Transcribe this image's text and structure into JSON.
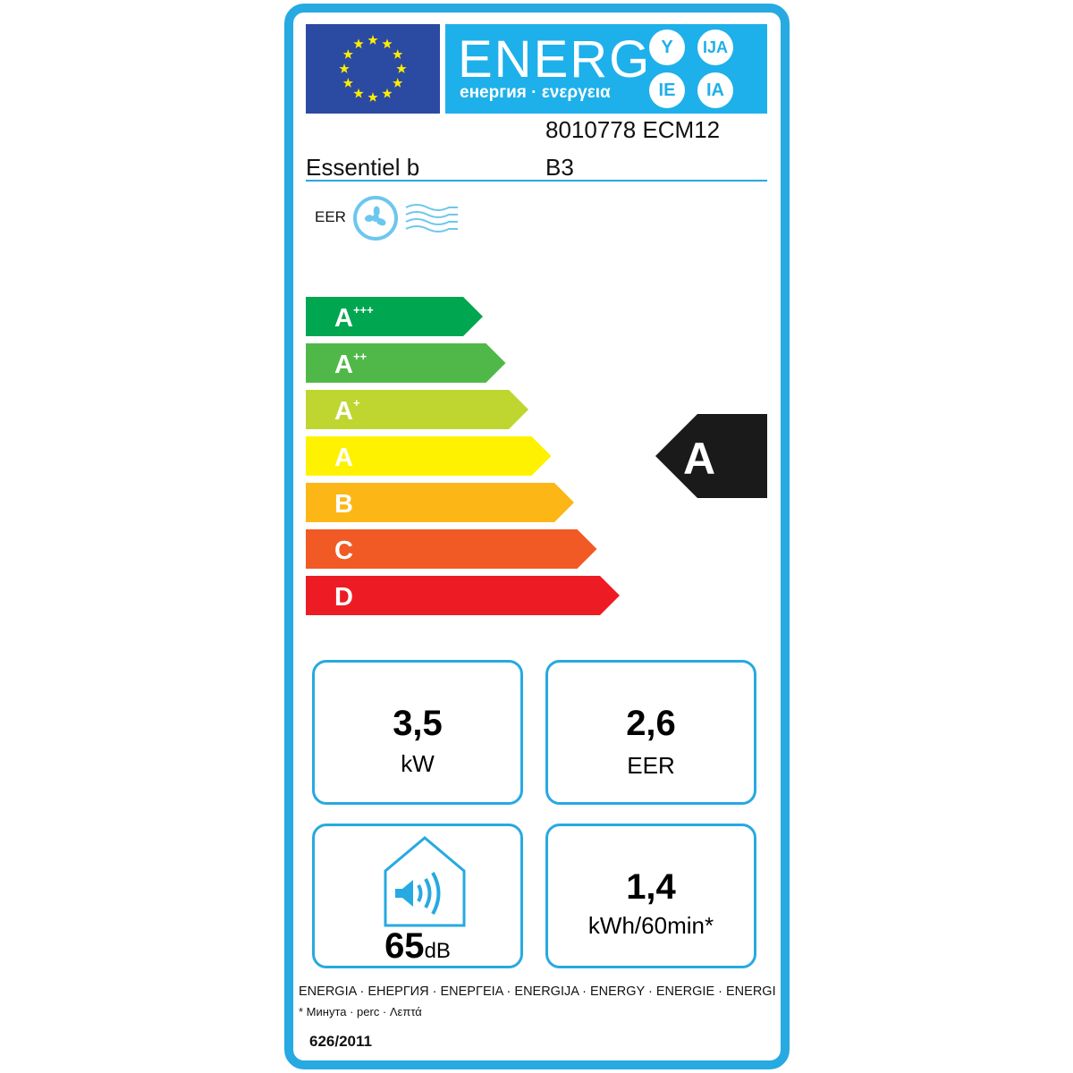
{
  "header": {
    "title": "ENERG",
    "subtitle": "енергия · ενεργεια",
    "suffixes": [
      "Y",
      "IJA",
      "IE",
      "IA"
    ]
  },
  "supplier": "Essentiel b",
  "model_line1": "8010778 ECM12",
  "model_line2": "B3",
  "mode_label": "EER",
  "scale": {
    "classes": [
      {
        "label": "A",
        "sup": "+++",
        "color": "#00a650"
      },
      {
        "label": "A",
        "sup": "++",
        "color": "#50b848"
      },
      {
        "label": "A",
        "sup": "+",
        "color": "#bed62f"
      },
      {
        "label": "A",
        "sup": "",
        "color": "#fff200"
      },
      {
        "label": "B",
        "sup": "",
        "color": "#fcb616"
      },
      {
        "label": "C",
        "sup": "",
        "color": "#f15a24"
      },
      {
        "label": "D",
        "sup": "",
        "color": "#ed1c24"
      }
    ],
    "rating": "A"
  },
  "boxes": {
    "power": {
      "value": "3,5",
      "unit": "kW"
    },
    "eer": {
      "value": "2,6",
      "unit": "EER"
    },
    "noise": {
      "value": "65",
      "unit": "dB"
    },
    "consumption": {
      "value": "1,4",
      "unit": "kWh/60min*"
    }
  },
  "footer": {
    "languages": "ENERGIA · ЕНЕРГИЯ · ΕΝΕΡΓΕΙΑ · ENERGIJA · ENERGY · ENERGIE · ENERGI",
    "note": "* Минута · perc · Λεπτά",
    "regulation": "626/2011"
  },
  "colors": {
    "frame": "#27a9e1",
    "flag": "#2b4aa2",
    "header": "#1eb0ea",
    "rating": "#1a1a1a"
  }
}
